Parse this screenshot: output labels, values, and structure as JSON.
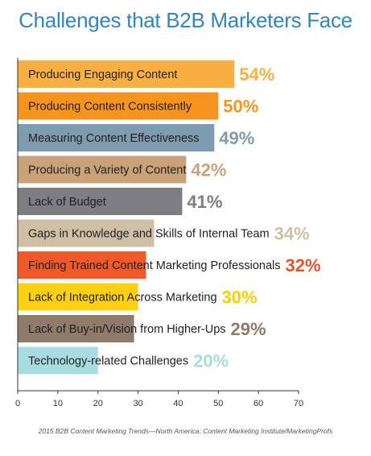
{
  "chart_data": {
    "type": "bar",
    "orientation": "horizontal",
    "title": "Challenges that B2B Marketers Face",
    "categories": [
      "Producing Engaging Content",
      "Producing Content Consistently",
      "Measuring Content Effectiveness",
      "Producing a Variety of Content",
      "Lack of Budget",
      "Gaps in Knowledge and Skills of Internal Team",
      "Finding Trained Content Marketing Professionals",
      "Lack of Integration Across Marketing",
      "Lack of Buy-in/Vision from Higher-Ups",
      "Technology-related Challenges"
    ],
    "values": [
      54,
      50,
      49,
      42,
      41,
      34,
      32,
      30,
      29,
      20
    ],
    "value_labels": [
      "54%",
      "50%",
      "49%",
      "42%",
      "41%",
      "34%",
      "32%",
      "30%",
      "29%",
      "20%"
    ],
    "colors": [
      "#f9b040",
      "#f7941e",
      "#7e9bb0",
      "#c9a27a",
      "#7d7d83",
      "#cfc0a5",
      "#ef5a28",
      "#ffd012",
      "#8e7b6a",
      "#a7dde0"
    ],
    "label_colors": [
      "#f9b040",
      "#f7941e",
      "#7e9bb0",
      "#c9a27a",
      "#7d7d83",
      "#cfc0a5",
      "#e8542b",
      "#ffcc00",
      "#8e7b6a",
      "#a7dde0"
    ],
    "xlim": [
      0,
      70
    ],
    "xticks": [
      "0",
      "10",
      "20",
      "30",
      "40",
      "50",
      "60",
      "70"
    ],
    "grid": false,
    "legend": "none"
  },
  "footer": {
    "source": "2015 B2B Content Marketing Trends—North America: Content Marketing Institute/MarketingProfs"
  }
}
